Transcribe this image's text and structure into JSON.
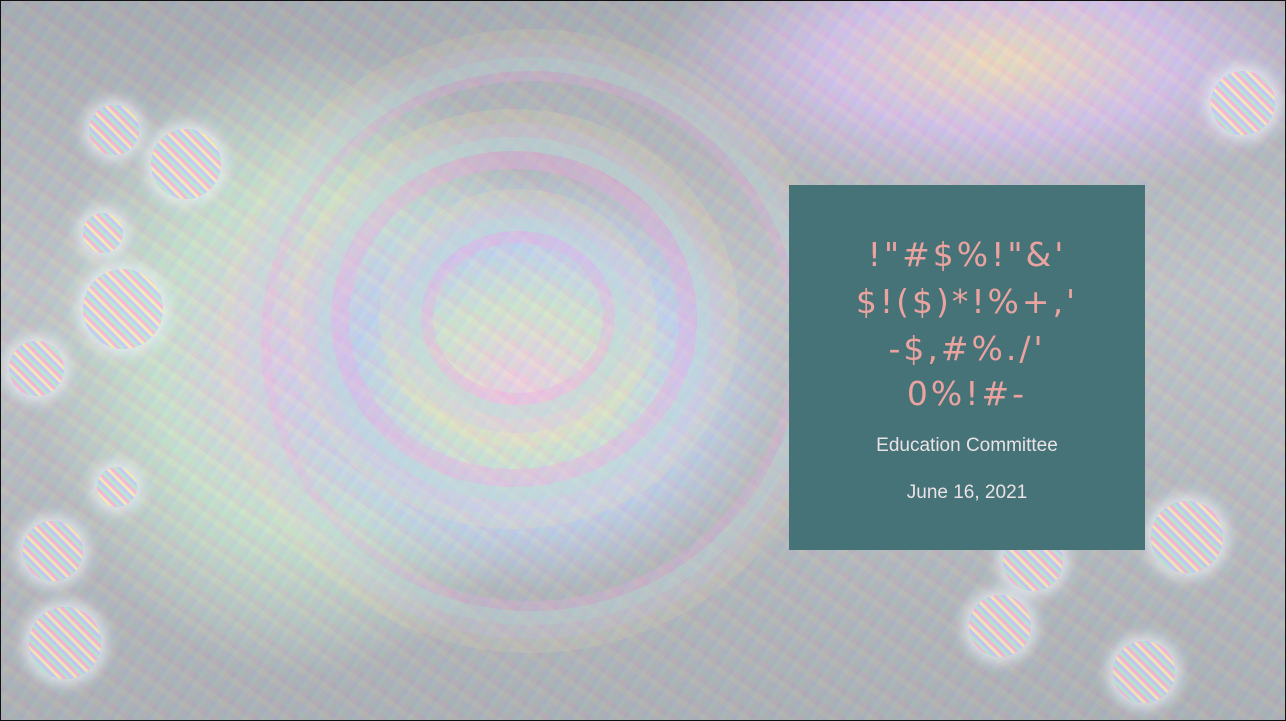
{
  "slide": {
    "title_lines": [
      "!\"#$%!\"&'",
      "$!($)*!%+,'",
      "-$,#%./'",
      "0%!#-"
    ],
    "subtitle": "Education Committee",
    "date": "June 16, 2021",
    "colors": {
      "card_background": "#467377",
      "title_text": "#eba3a0",
      "subtitle_text": "#e9e2e6"
    }
  }
}
